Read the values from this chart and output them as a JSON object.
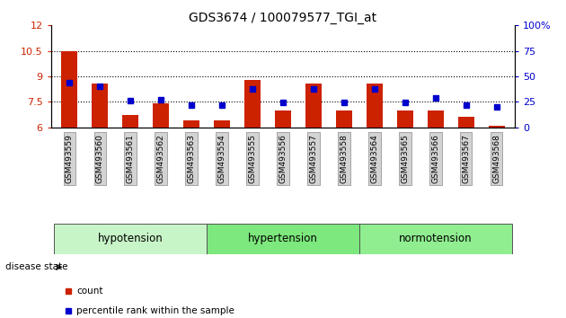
{
  "title": "GDS3674 / 100079577_TGI_at",
  "samples": [
    "GSM493559",
    "GSM493560",
    "GSM493561",
    "GSM493562",
    "GSM493563",
    "GSM493554",
    "GSM493555",
    "GSM493556",
    "GSM493557",
    "GSM493558",
    "GSM493564",
    "GSM493565",
    "GSM493566",
    "GSM493567",
    "GSM493568"
  ],
  "red_values": [
    10.5,
    8.6,
    6.7,
    7.4,
    6.4,
    6.4,
    8.8,
    7.0,
    8.6,
    7.0,
    8.6,
    7.0,
    7.0,
    6.6,
    6.1
  ],
  "blue_percentile": [
    44,
    40,
    26,
    27,
    22,
    22,
    38,
    24,
    38,
    24,
    38,
    24,
    29,
    22,
    20
  ],
  "groups": [
    {
      "name": "hypotension",
      "start": 0,
      "end": 4,
      "color": "#c8f0c8"
    },
    {
      "name": "hypertension",
      "start": 5,
      "end": 9,
      "color": "#7de87d"
    },
    {
      "name": "normotension",
      "start": 10,
      "end": 14,
      "color": "#90ee90"
    }
  ],
  "ylim_left": [
    6,
    12
  ],
  "ylim_right": [
    0,
    100
  ],
  "yticks_left": [
    6,
    7.5,
    9,
    10.5,
    12
  ],
  "yticks_right": [
    0,
    25,
    50,
    75,
    100
  ],
  "bar_color": "#cc2200",
  "blue_color": "#0000cc",
  "title_fontsize": 10,
  "tick_fontsize": 7,
  "group_fontsize": 8.5
}
